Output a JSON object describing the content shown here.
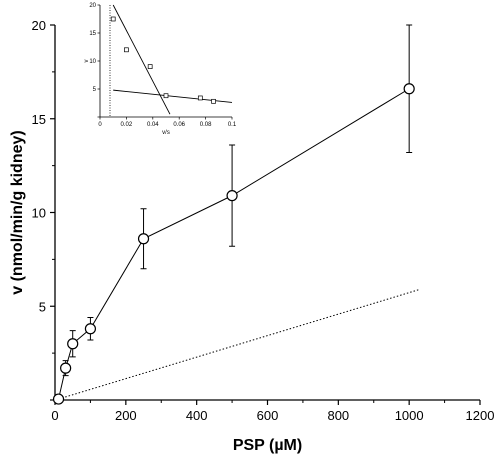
{
  "chart_data": [
    {
      "type": "line",
      "xlabel": "PSP (µM)",
      "ylabel": "v (nmol/min/g kidney)",
      "xlim": [
        0,
        1200
      ],
      "ylim": [
        0,
        20
      ],
      "xticks": [
        "0",
        "200",
        "400",
        "600",
        "800",
        "1000",
        "1200"
      ],
      "yticks": [
        "",
        "5",
        "10",
        "15",
        "20"
      ],
      "grid": false,
      "series": [
        {
          "style": "line with open circles and error bars",
          "x": [
            10,
            30,
            50,
            100,
            250,
            500,
            1000
          ],
          "y": [
            0.05,
            1.7,
            3.0,
            3.8,
            8.6,
            10.9,
            16.6
          ],
          "error": [
            0.0,
            0.4,
            0.7,
            0.6,
            1.6,
            2.7,
            3.4
          ]
        },
        {
          "style": "dotted line",
          "x": [
            10,
            1030
          ],
          "y": [
            0.05,
            5.9
          ]
        }
      ]
    },
    {
      "type": "scatter",
      "position": "inset top-left",
      "xlabel": "v/s",
      "ylabel": "v",
      "xlim": [
        0,
        0.1
      ],
      "ylim": [
        0,
        20
      ],
      "xticks": [
        "0",
        "0.02",
        "0.04",
        "0.06",
        "0.08",
        "0.1"
      ],
      "yticks": [
        "",
        "5",
        "10",
        "15",
        "20"
      ],
      "points": {
        "x": [
          0.01,
          0.02,
          0.038,
          0.05,
          0.076,
          0.086
        ],
        "y": [
          17.5,
          12.0,
          9.0,
          3.8,
          3.4,
          2.8
        ]
      },
      "fit_lines": [
        {
          "x": [
            0.01,
            0.053
          ],
          "y": [
            20.0,
            0.5
          ]
        },
        {
          "x": [
            0.01,
            0.1
          ],
          "y": [
            4.8,
            2.6
          ]
        }
      ]
    }
  ]
}
